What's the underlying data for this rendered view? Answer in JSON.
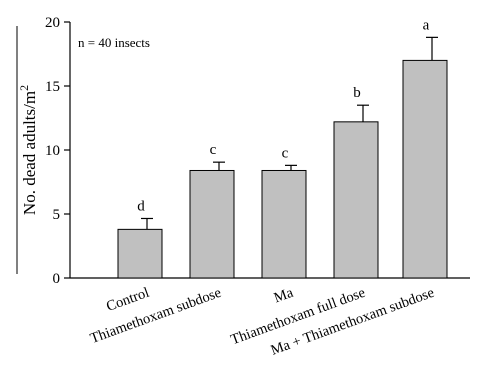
{
  "chart_data": {
    "type": "bar",
    "categories": [
      "Control",
      "Thiamethoxam subdose",
      "Ma",
      "Thiamethoxam full dose",
      "Ma + Thiamethoxam subdose"
    ],
    "values": [
      3.8,
      8.4,
      8.4,
      12.2,
      17.0
    ],
    "errors": [
      0.85,
      0.65,
      0.4,
      1.3,
      1.8
    ],
    "significance_letters": [
      "d",
      "c",
      "c",
      "b",
      "a"
    ],
    "title": "",
    "xlabel": "",
    "ylabel": "No. dead adults/m",
    "ylabel_superscript": "2",
    "annotation": "n = 40 insects",
    "ylim": [
      0,
      20
    ],
    "yticks": [
      0,
      5,
      10,
      15,
      20
    ],
    "grid": false,
    "legend": "none",
    "bar_color": "#c0c0c0",
    "bar_edge_color": "#000000"
  }
}
